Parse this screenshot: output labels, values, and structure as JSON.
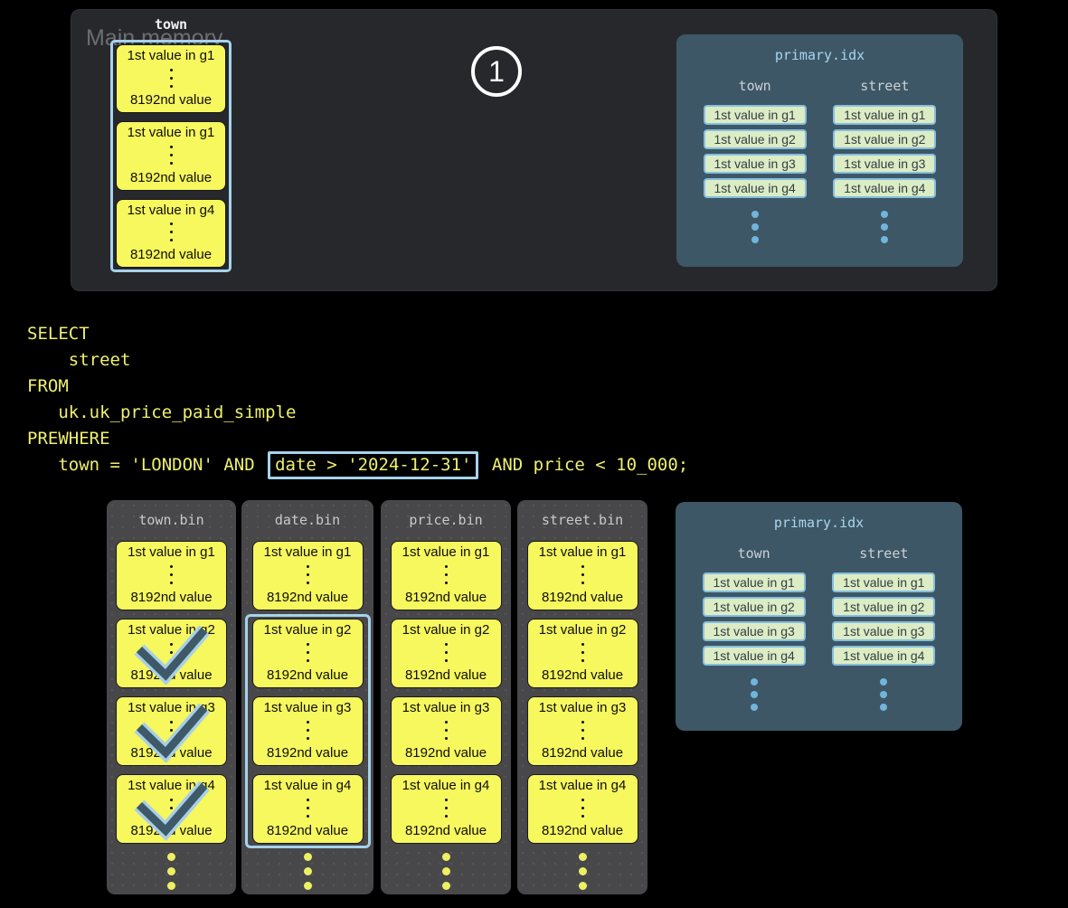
{
  "colors": {
    "background": "#000000",
    "panel_dark": "#27282c",
    "bin_gray": "#48484b",
    "index_panel": "#3d5766",
    "block_yellow": "#f7f75e",
    "highlight_blue": "#a6d2ec",
    "chip_green": "#dcecc4",
    "chip_border": "#86bedf",
    "sql_yellow": "#efef70",
    "dot_blue": "#72b5da",
    "dot_yellow": "#eef063",
    "check_fill": "#3e5968"
  },
  "step_badge": "1",
  "main_memory": {
    "label": "Main memory",
    "column_label": "town",
    "blocks": [
      {
        "top": "1st value in g1",
        "bottom": "8192nd value"
      },
      {
        "top": "1st value in g1",
        "bottom": "8192nd value"
      },
      {
        "top": "1st value in g4",
        "bottom": "8192nd value"
      }
    ]
  },
  "sql": {
    "lines": [
      "SELECT",
      "    street",
      "FROM",
      "   uk.uk_price_paid_simple",
      "PREWHERE"
    ],
    "last_line": {
      "pre": "   town = 'LONDON' AND ",
      "highlight": "date > '2024-12-31'",
      "post": " AND price < 10_000;"
    }
  },
  "primary_index_top": {
    "title": "primary.idx",
    "columns": [
      {
        "label": "town",
        "entries": [
          "1st value in g1",
          "1st value in g2",
          "1st value in g3",
          "1st value in g4"
        ]
      },
      {
        "label": "street",
        "entries": [
          "1st value in g1",
          "1st value in g2",
          "1st value in g3",
          "1st value in g4"
        ]
      }
    ]
  },
  "primary_index_bottom": {
    "title": "primary.idx",
    "columns": [
      {
        "label": "town",
        "entries": [
          "1st value in g1",
          "1st value in g2",
          "1st value in g3",
          "1st value in g4"
        ]
      },
      {
        "label": "street",
        "entries": [
          "1st value in g1",
          "1st value in g2",
          "1st value in g3",
          "1st value in g4"
        ]
      }
    ]
  },
  "bins": [
    {
      "title": "town.bin",
      "blocks": [
        {
          "top": "1st value in g1",
          "bottom": "8192nd value"
        },
        {
          "top": "1st value in g2",
          "bottom": "8192nd value"
        },
        {
          "top": "1st value in g3",
          "bottom": "8192nd value"
        },
        {
          "top": "1st value in g4",
          "bottom": "8192nd value"
        }
      ],
      "checked": [
        1,
        2,
        3
      ]
    },
    {
      "title": "date.bin",
      "blocks": [
        {
          "top": "1st value in g1",
          "bottom": "8192nd value"
        },
        {
          "top": "1st value in g2",
          "bottom": "8192nd value"
        },
        {
          "top": "1st value in g3",
          "bottom": "8192nd value"
        },
        {
          "top": "1st value in g4",
          "bottom": "8192nd value"
        }
      ],
      "box_range": [
        1,
        3
      ]
    },
    {
      "title": "price.bin",
      "blocks": [
        {
          "top": "1st value in g1",
          "bottom": "8192nd value"
        },
        {
          "top": "1st value in g2",
          "bottom": "8192nd value"
        },
        {
          "top": "1st value in g3",
          "bottom": "8192nd value"
        },
        {
          "top": "1st value in g4",
          "bottom": "8192nd value"
        }
      ]
    },
    {
      "title": "street.bin",
      "blocks": [
        {
          "top": "1st value in g1",
          "bottom": "8192nd value"
        },
        {
          "top": "1st value in g2",
          "bottom": "8192nd value"
        },
        {
          "top": "1st value in g3",
          "bottom": "8192nd value"
        },
        {
          "top": "1st value in g4",
          "bottom": "8192nd value"
        }
      ]
    }
  ]
}
